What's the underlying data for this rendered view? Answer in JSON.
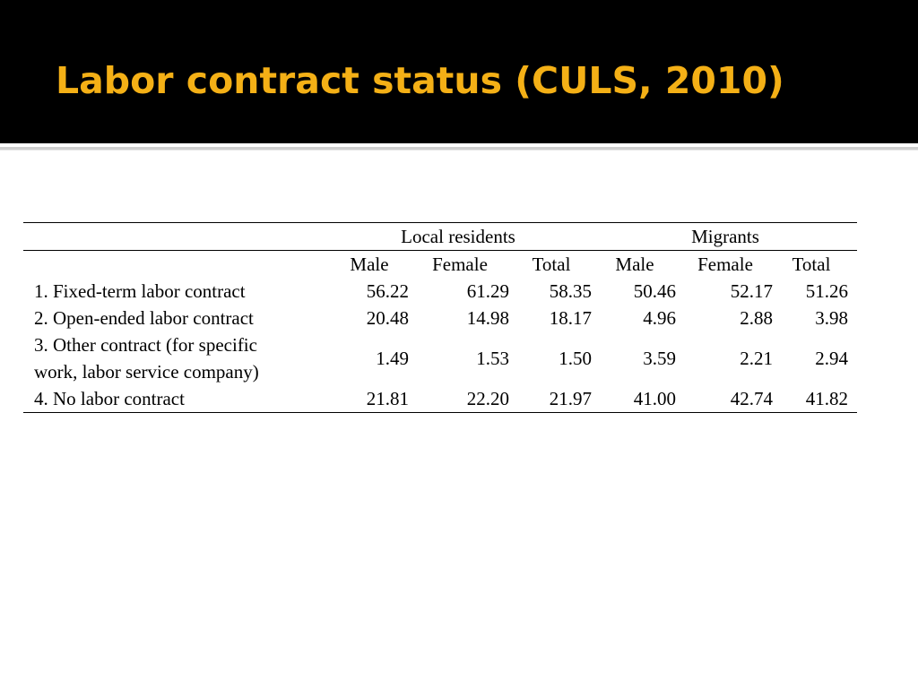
{
  "slide": {
    "title": "Labor contract status (CULS, 2010)"
  },
  "table": {
    "groups": [
      "Local residents",
      "Migrants"
    ],
    "columns": [
      "Male",
      "Female",
      "Total",
      "Male",
      "Female",
      "Total"
    ],
    "rows": [
      {
        "label": "1. Fixed-term labor contract",
        "values": [
          "56.22",
          "61.29",
          "58.35",
          "50.46",
          "52.17",
          "51.26"
        ]
      },
      {
        "label": "2. Open-ended labor contract",
        "values": [
          "20.48",
          "14.98",
          "18.17",
          "4.96",
          "2.88",
          "3.98"
        ]
      },
      {
        "label_line1": "3. Other contract (for specific",
        "label_line2": "work, labor service company)",
        "values": [
          "1.49",
          "1.53",
          "1.50",
          "3.59",
          "2.21",
          "2.94"
        ]
      },
      {
        "label": "4. No labor contract",
        "values": [
          "21.81",
          "22.20",
          "21.97",
          "41.00",
          "42.74",
          "41.82"
        ]
      }
    ]
  }
}
